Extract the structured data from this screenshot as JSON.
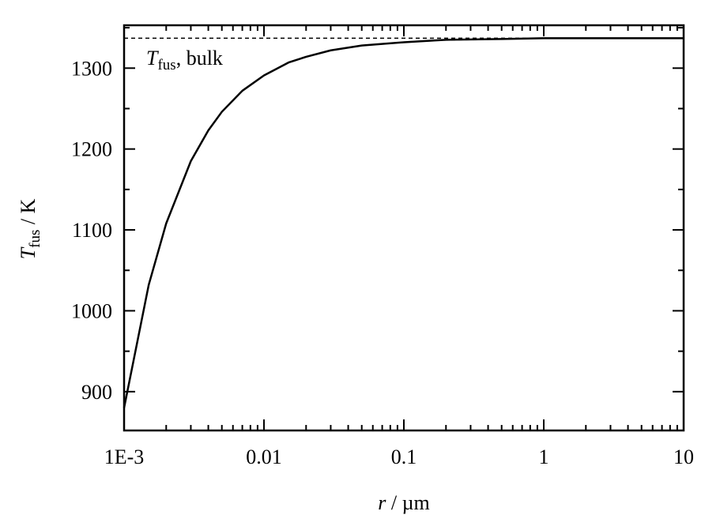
{
  "chart_data": {
    "type": "line",
    "x_label": {
      "italic": "r",
      "rest": " / µm"
    },
    "y_label": {
      "italic": "T",
      "sub": "fus",
      "rest": " / K"
    },
    "annotation": {
      "italic": "T",
      "sub": "fus",
      "rest": ", bulk"
    },
    "reference_line": 1337,
    "x": [
      0.001,
      0.0015,
      0.002,
      0.003,
      0.004,
      0.005,
      0.007,
      0.01,
      0.015,
      0.02,
      0.03,
      0.05,
      0.1,
      0.2,
      0.5,
      1,
      10
    ],
    "values": [
      880,
      1032,
      1108,
      1185,
      1223,
      1246,
      1272,
      1291,
      1307,
      1314,
      1322,
      1328,
      1332,
      1335,
      1336,
      1337,
      1337
    ],
    "color": "#000000",
    "log_x": true,
    "xlim": [
      0.001,
      10
    ],
    "xticks": [
      {
        "value": 0.001,
        "label": "1E-3"
      },
      0.01,
      0.1,
      1,
      10
    ],
    "xminorticks": [
      0.002,
      0.003,
      0.004,
      0.005,
      0.006,
      0.007,
      0.008,
      0.009,
      0.02,
      0.03,
      0.04,
      0.05,
      0.06,
      0.07,
      0.08,
      0.09,
      0.2,
      0.3,
      0.4,
      0.5,
      0.6,
      0.7,
      0.8,
      0.9,
      2,
      3,
      4,
      5,
      6,
      7,
      8,
      9
    ],
    "ylim": [
      852,
      1353
    ],
    "yticks": [
      900,
      1000,
      1100,
      1200,
      1300
    ],
    "yminorticks": [
      950,
      1050,
      1150,
      1250,
      1350
    ]
  }
}
